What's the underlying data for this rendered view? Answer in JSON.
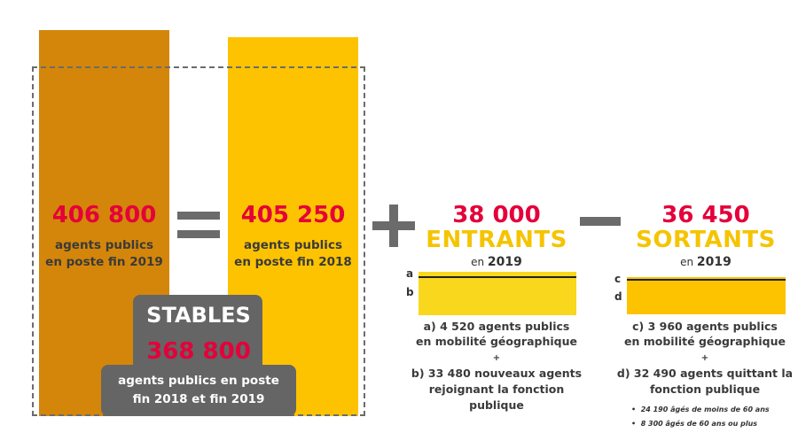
{
  "stock_2019": {
    "value": "406 800",
    "label_line1": "agents publics",
    "label_line2": "en poste fin 2019"
  },
  "equals_sign": "=",
  "stock_2018": {
    "value": "405 250",
    "label_line1": "agents publics",
    "label_line2": "en poste fin 2018"
  },
  "plus_sign": "+",
  "minus_sign": "−",
  "stables": {
    "title": "STABLES",
    "value": "368 800",
    "label_line1": "agents publics en poste",
    "label_line2": "fin 2018 et fin 2019"
  },
  "entrants": {
    "value": "38 000",
    "title": "ENTRANTS",
    "year_prefix": "en",
    "year": "2019",
    "letter_a": "a",
    "letter_b": "b",
    "desc_a_line1": "a) 4 520 agents publics",
    "desc_a_line2": "en mobilité  géographique",
    "plus": "+",
    "desc_b_line1": "b) 33 480 nouveaux agents",
    "desc_b_line2": "rejoignant la fonction",
    "desc_b_line3": "publique"
  },
  "sortants": {
    "value": "36 450",
    "title": "SORTANTS",
    "year_prefix": "en",
    "year": "2019",
    "letter_c": "c",
    "letter_d": "d",
    "desc_c_line1": "c) 3 960 agents publics",
    "desc_c_line2": "en mobilité  géographique",
    "plus": "+",
    "desc_d_line1": "d) 32 490 agents quittant la",
    "desc_d_line2": "fonction publique",
    "bullet_1": "24 190 âgés de moins de 60 ans",
    "bullet_2": "8 300 âgés de 60 ans ou plus"
  },
  "colors": {
    "dark_orange": "#d4860a",
    "yellow": "#fdc300",
    "light_yellow": "#f9d71c",
    "red": "#e4003a",
    "grey_sign": "#6b6b6b",
    "stables_box": "#656565",
    "dashed_border": "#666666"
  }
}
